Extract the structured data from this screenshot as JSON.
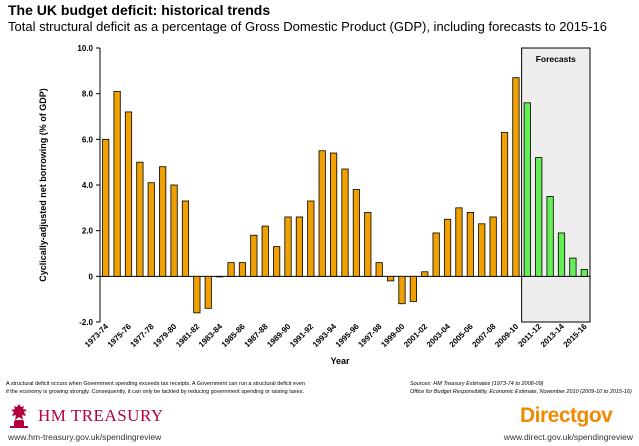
{
  "title": "The UK budget deficit: historical trends",
  "subtitle": "Total structural deficit as a percentage of Gross Domestic Product (GDP), including forecasts to 2015-16",
  "footnote_lines": [
    "A structural deficit occurs when Government spending exceeds tax receipts. A Government can run a structural deficit even",
    "if the economy is growing strongly. Consequently, it can only be tackled by reducing government spending or raising taxes."
  ],
  "sources_lines": [
    "Sources: HM Treasury Estimates (1973-74 to 2008-09)",
    "Office for Budget Responsibility, Economic Estimate, November 2010 (2009-10 to 2015-16)"
  ],
  "hm_treasury": {
    "name": "HM TREASURY",
    "url": "www.hm-treasury.gov.uk/spendingreview"
  },
  "directgov": {
    "name": "Directgov",
    "url": "www.direct.gov.uk/spendingreview"
  },
  "colors": {
    "historical": "#f0a000",
    "forecast": "#66ee55",
    "outline": "#000000",
    "forecast_region": "#eeeeee"
  },
  "chart_data": {
    "type": "bar",
    "xlabel": "Year",
    "ylabel": "Cyclically-adjusted net borrowing (% of GDP)",
    "ylim": [
      -2.0,
      10.0
    ],
    "yticks": [
      "-2.0",
      "0",
      "2.0",
      "4.0",
      "6.0",
      "8.0",
      "10.0"
    ],
    "ytick_values": [
      -2,
      0,
      2,
      4,
      6,
      8,
      10
    ],
    "forecast_label": "Forecasts",
    "forecast_start_index": 37,
    "categories": [
      "1973-74",
      "1974-75",
      "1975-76",
      "1976-77",
      "1977-78",
      "1978-79",
      "1979-80",
      "1980-81",
      "1981-82",
      "1982-83",
      "1983-84",
      "1984-85",
      "1985-86",
      "1986-87",
      "1987-88",
      "1988-89",
      "1989-90",
      "1990-91",
      "1991-92",
      "1992-93",
      "1993-94",
      "1994-95",
      "1995-96",
      "1996-97",
      "1997-98",
      "1998-99",
      "1999-00",
      "2000-01",
      "2001-02",
      "2002-03",
      "2003-04",
      "2004-05",
      "2005-06",
      "2006-07",
      "2007-08",
      "2008-09",
      "2009-10",
      "2010-11",
      "2011-12",
      "2012-13",
      "2013-14",
      "2014-15",
      "2015-16"
    ],
    "tick_labels": [
      "1973-74",
      "",
      "1975-76",
      "",
      "1977-78",
      "",
      "1979-80",
      "",
      "1981-82",
      "",
      "1983-84",
      "",
      "1985-86",
      "",
      "1987-88",
      "",
      "1989-90",
      "",
      "1991-92",
      "",
      "1993-94",
      "",
      "1995-96",
      "",
      "1997-98",
      "",
      "1999-00",
      "",
      "2001-02",
      "",
      "2003-04",
      "",
      "2005-06",
      "",
      "2007-08",
      "",
      "2009-10",
      "",
      "2011-12",
      "",
      "2013-14",
      "",
      "2015-16"
    ],
    "values": [
      6.0,
      8.1,
      7.2,
      5.0,
      4.1,
      4.8,
      4.0,
      3.3,
      -1.6,
      -1.4,
      0.0,
      0.6,
      0.6,
      1.8,
      2.2,
      1.3,
      2.6,
      2.6,
      3.3,
      5.5,
      5.4,
      4.7,
      3.8,
      2.8,
      0.6,
      -0.2,
      -1.2,
      -1.1,
      0.2,
      1.9,
      2.5,
      3.0,
      2.8,
      2.3,
      2.6,
      6.3,
      8.7,
      7.6,
      5.2,
      3.5,
      1.9,
      0.8,
      0.3
    ]
  }
}
